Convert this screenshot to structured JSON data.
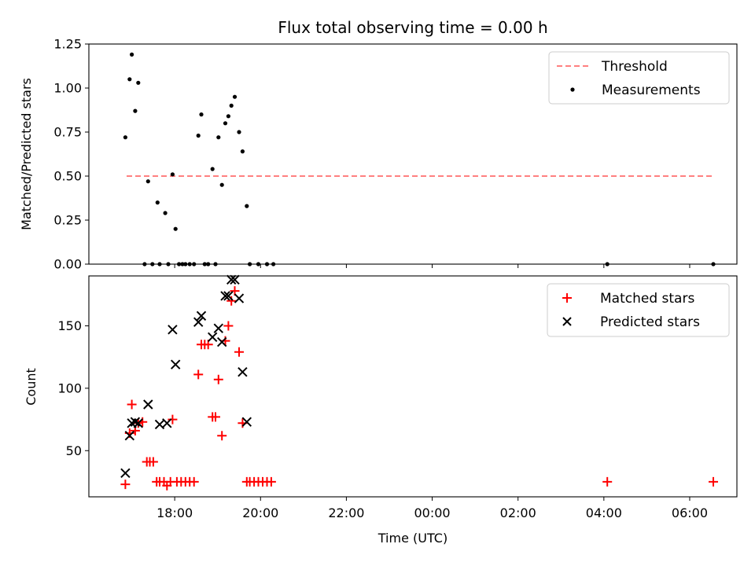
{
  "colors": {
    "threshold": "#ff8080",
    "measurement": "#000000",
    "matched": "#ff0000",
    "predicted": "#000000",
    "axes": "#000000",
    "background": "#ffffff"
  },
  "chart_data": [
    {
      "type": "scatter",
      "title": "Flux total observing time = 0.00 h",
      "xlabel": "",
      "ylabel": "Matched/Predicted stars",
      "xlim_hours": [
        16.0,
        31.1
      ],
      "ylim": [
        0,
        1.25
      ],
      "yticks": [
        0.0,
        0.25,
        0.5,
        0.75,
        1.0,
        1.25
      ],
      "ytick_labels": [
        "0.00",
        "0.25",
        "0.50",
        "0.75",
        "1.00",
        "1.25"
      ],
      "grid": false,
      "legend": {
        "placement": "top-right",
        "entries": [
          {
            "label": "Threshold",
            "symbol": "dashed-line"
          },
          {
            "label": "Measurements",
            "symbol": "dot"
          }
        ]
      },
      "threshold": {
        "name": "Threshold",
        "value": 0.5,
        "x_start": "16.88",
        "x_end": "30.54"
      },
      "series": [
        {
          "name": "Measurements",
          "points": [
            [
              16.85,
              0.72
            ],
            [
              16.95,
              1.05
            ],
            [
              17.0,
              1.19
            ],
            [
              17.08,
              0.87
            ],
            [
              17.15,
              1.03
            ],
            [
              17.3,
              0.0
            ],
            [
              17.38,
              0.47
            ],
            [
              17.48,
              0.0
            ],
            [
              17.6,
              0.35
            ],
            [
              17.65,
              0.0
            ],
            [
              17.78,
              0.29
            ],
            [
              17.85,
              0.0
            ],
            [
              17.95,
              0.51
            ],
            [
              18.02,
              0.2
            ],
            [
              18.1,
              0.0
            ],
            [
              18.18,
              0.0
            ],
            [
              18.25,
              0.0
            ],
            [
              18.35,
              0.0
            ],
            [
              18.45,
              0.0
            ],
            [
              18.55,
              0.73
            ],
            [
              18.62,
              0.85
            ],
            [
              18.7,
              0.0
            ],
            [
              18.78,
              0.0
            ],
            [
              18.88,
              0.54
            ],
            [
              18.95,
              0.0
            ],
            [
              19.02,
              0.72
            ],
            [
              19.1,
              0.45
            ],
            [
              19.18,
              0.8
            ],
            [
              19.25,
              0.84
            ],
            [
              19.32,
              0.9
            ],
            [
              19.4,
              0.95
            ],
            [
              19.5,
              0.75
            ],
            [
              19.58,
              0.64
            ],
            [
              19.68,
              0.33
            ],
            [
              19.75,
              0.0
            ],
            [
              19.95,
              0.0
            ],
            [
              20.15,
              0.0
            ],
            [
              20.3,
              0.0
            ],
            [
              28.08,
              0.0
            ],
            [
              30.55,
              0.0
            ]
          ]
        }
      ]
    },
    {
      "type": "scatter",
      "title": "",
      "xlabel": "Time (UTC)",
      "ylabel": "Count",
      "xlim_hours": [
        16.0,
        31.1
      ],
      "ylim": [
        13,
        190
      ],
      "yticks": [
        50,
        100,
        150
      ],
      "ytick_labels": [
        "50",
        "100",
        "150"
      ],
      "xticks_hours": [
        18,
        20,
        22,
        24,
        26,
        28,
        30
      ],
      "xtick_labels": [
        "18:00",
        "20:00",
        "22:00",
        "00:00",
        "02:00",
        "04:00",
        "06:00"
      ],
      "grid": false,
      "legend": {
        "placement": "top-right",
        "entries": [
          {
            "label": "Matched stars",
            "symbol": "plus"
          },
          {
            "label": "Predicted stars",
            "symbol": "x"
          }
        ]
      },
      "series": [
        {
          "name": "Matched stars",
          "marker": "plus",
          "points": [
            [
              16.85,
              23
            ],
            [
              16.95,
              64
            ],
            [
              17.0,
              87
            ],
            [
              17.08,
              66
            ],
            [
              17.15,
              72
            ],
            [
              17.25,
              73
            ],
            [
              17.35,
              41
            ],
            [
              17.42,
              41
            ],
            [
              17.5,
              41
            ],
            [
              17.58,
              25
            ],
            [
              17.65,
              25
            ],
            [
              17.75,
              25
            ],
            [
              17.82,
              22
            ],
            [
              17.9,
              25
            ],
            [
              17.95,
              75
            ],
            [
              18.05,
              25
            ],
            [
              18.15,
              25
            ],
            [
              18.25,
              25
            ],
            [
              18.35,
              25
            ],
            [
              18.45,
              25
            ],
            [
              18.55,
              111
            ],
            [
              18.62,
              135
            ],
            [
              18.7,
              135
            ],
            [
              18.78,
              135
            ],
            [
              18.88,
              77
            ],
            [
              18.95,
              77
            ],
            [
              19.02,
              107
            ],
            [
              19.1,
              62
            ],
            [
              19.18,
              138
            ],
            [
              19.25,
              150
            ],
            [
              19.32,
              170
            ],
            [
              19.4,
              178
            ],
            [
              19.5,
              129
            ],
            [
              19.58,
              72
            ],
            [
              19.68,
              25
            ],
            [
              19.75,
              25
            ],
            [
              19.85,
              25
            ],
            [
              19.95,
              25
            ],
            [
              20.05,
              25
            ],
            [
              20.15,
              25
            ],
            [
              20.25,
              25
            ],
            [
              28.08,
              25
            ],
            [
              30.55,
              25
            ]
          ]
        },
        {
          "name": "Predicted stars",
          "marker": "x",
          "points": [
            [
              16.85,
              32
            ],
            [
              16.95,
              62
            ],
            [
              17.0,
              72
            ],
            [
              17.08,
              73
            ],
            [
              17.15,
              72
            ],
            [
              17.38,
              87
            ],
            [
              17.65,
              71
            ],
            [
              17.82,
              72
            ],
            [
              17.95,
              147
            ],
            [
              18.02,
              119
            ],
            [
              18.55,
              153
            ],
            [
              18.62,
              158
            ],
            [
              18.88,
              141
            ],
            [
              19.02,
              148
            ],
            [
              19.1,
              137
            ],
            [
              19.18,
              174
            ],
            [
              19.25,
              174
            ],
            [
              19.32,
              187
            ],
            [
              19.4,
              187
            ],
            [
              19.5,
              172
            ],
            [
              19.58,
              113
            ],
            [
              19.68,
              73
            ]
          ]
        }
      ]
    }
  ]
}
